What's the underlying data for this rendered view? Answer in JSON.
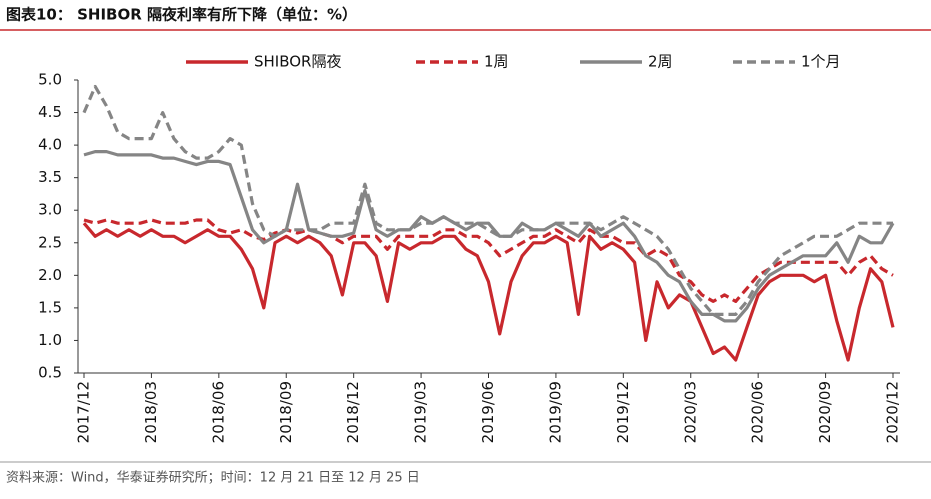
{
  "chart_data": {
    "type": "line",
    "title": "图表10： SHIBOR 隔夜利率有所下降（单位：%）",
    "source": "资料来源：Wind，华泰证券研究所；时间：12 月 21 日至 12 月 25 日",
    "categories": [
      "2017/12",
      null,
      null,
      null,
      null,
      null,
      "2018/03",
      null,
      null,
      null,
      null,
      null,
      "2018/06",
      null,
      null,
      null,
      null,
      null,
      "2018/09",
      null,
      null,
      null,
      null,
      null,
      "2018/12",
      null,
      null,
      null,
      null,
      null,
      "2019/03",
      null,
      null,
      null,
      null,
      null,
      "2019/06",
      null,
      null,
      null,
      null,
      null,
      "2019/09",
      null,
      null,
      null,
      null,
      null,
      "2019/12",
      null,
      null,
      null,
      null,
      null,
      "2020/03",
      null,
      null,
      null,
      null,
      null,
      "2020/06",
      null,
      null,
      null,
      null,
      null,
      "2020/09",
      null,
      null,
      null,
      null,
      null,
      "2020/12"
    ],
    "ylim": [
      0.5,
      5.0
    ],
    "yticks": [
      0.5,
      {
        "value": 1,
        "label": "1.0"
      },
      1.5,
      {
        "value": 2,
        "label": "2.0"
      },
      2.5,
      {
        "value": 3,
        "label": "3.0"
      },
      3.5,
      {
        "value": 4,
        "label": "4.0"
      },
      4.5,
      {
        "value": 5,
        "label": "5.0"
      }
    ],
    "grid": false,
    "legend": "top",
    "series": [
      {
        "name": "SHIBOR隔夜",
        "color": "#c8282d",
        "dashed": false,
        "values": [
          2.8,
          2.6,
          2.7,
          2.6,
          2.7,
          2.6,
          2.7,
          2.6,
          2.6,
          2.5,
          2.6,
          2.7,
          2.6,
          2.6,
          2.4,
          2.1,
          1.5,
          2.5,
          2.6,
          2.5,
          2.6,
          2.5,
          2.3,
          1.7,
          2.5,
          2.5,
          2.3,
          1.6,
          2.5,
          2.4,
          2.5,
          2.5,
          2.6,
          2.6,
          2.4,
          2.3,
          1.9,
          1.1,
          1.9,
          2.3,
          2.5,
          2.5,
          2.6,
          2.5,
          1.4,
          2.6,
          2.4,
          2.5,
          2.4,
          2.2,
          1.0,
          1.9,
          1.5,
          1.7,
          1.6,
          1.2,
          0.8,
          0.9,
          0.7,
          1.2,
          1.7,
          1.9,
          2.0,
          2.0,
          2.0,
          1.9,
          2.0,
          1.3,
          0.7,
          1.5,
          2.1,
          1.9,
          1.2
        ]
      },
      {
        "name": "1周",
        "color": "#c8282d",
        "dashed": true,
        "values": [
          2.85,
          2.8,
          2.85,
          2.8,
          2.8,
          2.8,
          2.85,
          2.8,
          2.8,
          2.8,
          2.85,
          2.85,
          2.7,
          2.65,
          2.7,
          2.6,
          2.55,
          2.65,
          2.7,
          2.65,
          2.7,
          2.65,
          2.6,
          2.5,
          2.6,
          2.6,
          2.6,
          2.4,
          2.6,
          2.6,
          2.6,
          2.6,
          2.7,
          2.7,
          2.6,
          2.6,
          2.5,
          2.3,
          2.4,
          2.5,
          2.6,
          2.6,
          2.7,
          2.6,
          2.5,
          2.7,
          2.6,
          2.6,
          2.5,
          2.5,
          2.3,
          2.4,
          2.3,
          2.0,
          1.9,
          1.7,
          1.6,
          1.7,
          1.6,
          1.8,
          2.0,
          2.1,
          2.2,
          2.2,
          2.2,
          2.2,
          2.2,
          2.2,
          2.0,
          2.2,
          2.3,
          2.1,
          2.0
        ]
      },
      {
        "name": "2周",
        "color": "#858585",
        "dashed": false,
        "values": [
          3.85,
          3.9,
          3.9,
          3.85,
          3.85,
          3.85,
          3.85,
          3.8,
          3.8,
          3.75,
          3.7,
          3.75,
          3.75,
          3.7,
          3.2,
          2.7,
          2.5,
          2.6,
          2.7,
          3.4,
          2.7,
          2.65,
          2.6,
          2.6,
          2.65,
          3.3,
          2.7,
          2.6,
          2.7,
          2.7,
          2.9,
          2.8,
          2.9,
          2.8,
          2.7,
          2.8,
          2.8,
          2.6,
          2.6,
          2.8,
          2.7,
          2.7,
          2.8,
          2.7,
          2.6,
          2.8,
          2.6,
          2.7,
          2.8,
          2.6,
          2.3,
          2.2,
          2.0,
          1.9,
          1.6,
          1.4,
          1.4,
          1.3,
          1.3,
          1.5,
          1.8,
          2.0,
          2.1,
          2.2,
          2.3,
          2.3,
          2.3,
          2.5,
          2.2,
          2.6,
          2.5,
          2.5,
          2.8
        ]
      },
      {
        "name": "1个月",
        "color": "#858585",
        "dashed": true,
        "values": [
          4.5,
          4.9,
          4.6,
          4.2,
          4.1,
          4.1,
          4.1,
          4.5,
          4.1,
          3.9,
          3.8,
          3.8,
          3.9,
          4.1,
          4.0,
          3.1,
          2.7,
          2.6,
          2.7,
          2.7,
          2.7,
          2.7,
          2.8,
          2.8,
          2.8,
          3.4,
          2.8,
          2.7,
          2.7,
          2.7,
          2.8,
          2.8,
          2.9,
          2.8,
          2.8,
          2.8,
          2.7,
          2.6,
          2.6,
          2.7,
          2.7,
          2.7,
          2.8,
          2.8,
          2.8,
          2.8,
          2.7,
          2.8,
          2.9,
          2.8,
          2.7,
          2.6,
          2.4,
          2.1,
          1.8,
          1.6,
          1.4,
          1.4,
          1.4,
          1.6,
          1.9,
          2.1,
          2.3,
          2.4,
          2.5,
          2.6,
          2.6,
          2.6,
          2.7,
          2.8,
          2.8,
          2.8,
          2.8
        ]
      }
    ]
  }
}
